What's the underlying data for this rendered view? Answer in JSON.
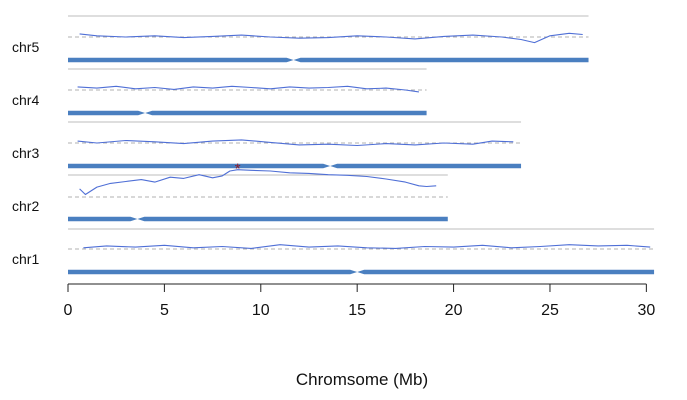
{
  "chart_data": {
    "type": "line",
    "title": "",
    "xlabel": "Chromsome (Mb)",
    "ylabel": "",
    "xlim": [
      0,
      30.5
    ],
    "x_ticks": [
      0,
      5,
      10,
      15,
      20,
      25,
      30
    ],
    "grid": false,
    "legend": "none",
    "colors": {
      "chromosome_bar": "#4a7fc0",
      "trace_line": "#4f6fd6",
      "separator": "#bdbdbd",
      "baseline_dashed": "#b0b0b0",
      "peak_marker": "#8b1c2c",
      "axis": "#222222"
    },
    "chromosomes": [
      {
        "name": "chr1",
        "length": 30.4,
        "centromere": 15.0
      },
      {
        "name": "chr2",
        "length": 19.7,
        "centromere": 3.6
      },
      {
        "name": "chr3",
        "length": 23.5,
        "centromere": 13.6
      },
      {
        "name": "chr4",
        "length": 18.6,
        "centromere": 4.0
      },
      {
        "name": "chr5",
        "length": 27.0,
        "centromere": 11.7
      }
    ],
    "series": [
      {
        "chromosome": "chr1",
        "baseline": 0,
        "x": [
          0.8,
          2,
          3.5,
          5,
          6.5,
          8,
          9.5,
          11,
          12.5,
          14,
          15.5,
          17,
          18.5,
          20,
          21.5,
          23,
          24.5,
          26,
          27.5,
          29,
          30.2
        ],
        "y": [
          0.2,
          0.5,
          0.3,
          0.6,
          0.2,
          0.4,
          0.1,
          0.7,
          0.3,
          0.5,
          0.2,
          0.1,
          0.4,
          0.3,
          0.6,
          0.2,
          0.4,
          0.7,
          0.5,
          0.6,
          0.3
        ]
      },
      {
        "chromosome": "chr2",
        "baseline": 0,
        "x": [
          0.6,
          0.9,
          1.5,
          2.2,
          3,
          3.8,
          4.5,
          5.3,
          6,
          6.8,
          7.5,
          8,
          8.4,
          8.8,
          9.5,
          10.5,
          11.5,
          12.5,
          13.5,
          14.5,
          15.5,
          16.5,
          17.5,
          18.2,
          18.6,
          19.1
        ],
        "y": [
          1.3,
          0.4,
          1.6,
          2.2,
          2.5,
          2.8,
          2.4,
          3.2,
          3.0,
          3.6,
          3.1,
          3.4,
          4.2,
          4.4,
          4.3,
          4.2,
          3.9,
          3.8,
          3.6,
          3.5,
          3.3,
          2.9,
          2.4,
          1.8,
          1.7,
          1.8
        ]
      },
      {
        "chromosome": "chr3",
        "baseline": 0,
        "x": [
          0.5,
          1.5,
          3,
          4.5,
          6,
          7.5,
          9,
          10.5,
          12,
          13.5,
          15,
          16.5,
          18,
          19.5,
          21,
          22,
          23.1
        ],
        "y": [
          0.3,
          0.0,
          0.4,
          0.2,
          -0.1,
          0.3,
          0.5,
          0.1,
          -0.3,
          -0.2,
          -0.4,
          -0.1,
          -0.3,
          0.0,
          -0.2,
          0.3,
          0.2
        ]
      },
      {
        "chromosome": "chr4",
        "baseline": 0,
        "x": [
          0.5,
          1.5,
          2.5,
          3.5,
          4.5,
          5.5,
          6.5,
          7.5,
          8.5,
          9.5,
          10.5,
          11.5,
          12.5,
          13.5,
          14.5,
          15.5,
          16.5,
          17.5,
          18.2
        ],
        "y": [
          0.5,
          0.3,
          0.6,
          0.2,
          0.4,
          0.1,
          0.5,
          0.3,
          0.6,
          0.4,
          0.2,
          0.5,
          0.3,
          0.4,
          0.6,
          0.2,
          0.3,
          0.0,
          -0.3
        ]
      },
      {
        "chromosome": "chr5",
        "baseline": 0,
        "x": [
          0.6,
          1.5,
          3,
          4.5,
          6,
          7.5,
          9,
          10.5,
          12,
          13.5,
          15,
          16.5,
          18,
          19.5,
          21,
          22.5,
          23.5,
          24.2,
          25,
          26,
          26.7
        ],
        "y": [
          0.5,
          0.2,
          0.0,
          0.2,
          -0.1,
          0.1,
          0.3,
          0.0,
          -0.2,
          -0.1,
          0.2,
          0.0,
          -0.3,
          0.1,
          0.3,
          0.0,
          -0.4,
          -0.9,
          0.2,
          0.6,
          0.4
        ]
      }
    ],
    "peak_marker": {
      "chromosome": "chr2",
      "x": 8.8,
      "y": 4.4,
      "symbol": "*"
    }
  }
}
